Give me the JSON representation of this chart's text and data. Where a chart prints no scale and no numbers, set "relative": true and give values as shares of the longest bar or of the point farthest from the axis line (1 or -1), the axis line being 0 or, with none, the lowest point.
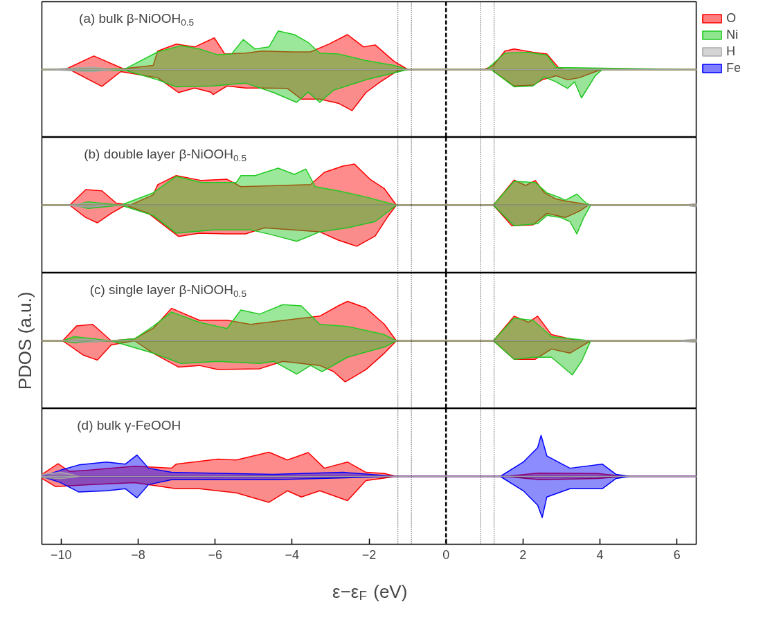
{
  "chart_data": [
    {
      "type": "area",
      "relative": true,
      "title": "(a) bulk β-NiOOH$_{0.5}$",
      "xlim": [
        -10.5,
        6.5
      ],
      "tick_labels": false,
      "legend": "right",
      "grid": false,
      "ref_lines": [
        {
          "axis": "x",
          "value": -1.25,
          "line_style": "dotted",
          "color": "#000000"
        },
        {
          "axis": "x",
          "value": -0.9,
          "line_style": "dotted",
          "color": "#000000"
        },
        {
          "axis": "x",
          "value": 0,
          "line_style": "dashed",
          "color": "#000000"
        },
        {
          "axis": "x",
          "value": 0.9,
          "line_style": "dotted",
          "color": "#000000"
        },
        {
          "axis": "x",
          "value": 1.25,
          "line_style": "dotted",
          "color": "#000000"
        }
      ],
      "series": [
        {
          "name": "O",
          "color": "#ff0000",
          "x": [
            -10.5,
            -9.9,
            -9.15,
            -8.39,
            -7.61,
            -7.49,
            -7.01,
            -6.53,
            -6.02,
            -5.75,
            -5.21,
            -4.78,
            -4.0,
            -3.52,
            -3.04,
            -2.56,
            -2.14,
            -1.84,
            -1.35,
            -0.99,
            0.99,
            1.23,
            1.53,
            1.77,
            2.26,
            2.62,
            2.92,
            3.1,
            6.5
          ],
          "values": [
            0,
            0,
            0.33,
            0.02,
            0.1,
            0.45,
            0.62,
            0.55,
            0.77,
            0.38,
            0.4,
            0.45,
            0.43,
            0.43,
            0.62,
            0.85,
            0.55,
            0.6,
            0.2,
            0,
            0,
            0.1,
            0.45,
            0.5,
            0.42,
            0.38,
            0.05,
            0,
            0
          ]
        },
        {
          "name": "Ni",
          "color": "#22cc22",
          "x": [
            -10.5,
            -8.33,
            -7.49,
            -6.89,
            -6.41,
            -5.93,
            -5.57,
            -5.27,
            -4.96,
            -4.6,
            -4.36,
            -3.94,
            -3.58,
            -3.28,
            -2.8,
            -2.08,
            -1.35,
            -0.99,
            1.05,
            1.53,
            2.14,
            2.62,
            2.86,
            6.5
          ],
          "values": [
            0,
            0.02,
            0.43,
            0.58,
            0.5,
            0.36,
            0.38,
            0.73,
            0.5,
            0.55,
            0.94,
            0.85,
            0.66,
            0.4,
            0.38,
            0.22,
            0.1,
            0,
            0,
            0.4,
            0.42,
            0.35,
            0.05,
            0
          ]
        },
        {
          "name": "H",
          "color": "#aaaaaa",
          "x": [
            -10.5,
            -10.2,
            -9.2,
            -8.6,
            6.5
          ],
          "values": [
            0,
            0.01,
            0.06,
            0,
            0
          ]
        },
        {
          "color": "#f40000",
          "x": [
            -10.5,
            -9.78,
            -8.94,
            -8.45,
            -7.49,
            -6.95,
            -6.53,
            -6.11,
            -6.05,
            -5.69,
            -5.21,
            -4.78,
            -4.12,
            -3.76,
            -3.28,
            -2.8,
            -2.44,
            -2.08,
            -1.72,
            -1.29,
            -0.99,
            1.17,
            1.77,
            2.26,
            2.5,
            2.86,
            3.16,
            3.46,
            3.88,
            4.06,
            6.5
          ],
          "values": [
            0,
            0,
            -0.41,
            -0.05,
            -0.2,
            -0.56,
            -0.45,
            -0.55,
            -0.61,
            -0.4,
            -0.45,
            -0.45,
            -0.46,
            -0.72,
            -0.72,
            -0.82,
            -1.0,
            -0.56,
            -0.31,
            -0.05,
            0,
            0,
            -0.4,
            -0.38,
            -0.25,
            -0.15,
            -0.25,
            -0.2,
            -0.05,
            0,
            0
          ]
        },
        {
          "color": "#20c420",
          "x": [
            -10.5,
            -8.33,
            -7.49,
            -7.01,
            -6.05,
            -5.21,
            -4.48,
            -3.88,
            -3.58,
            -3.28,
            -2.92,
            -2.08,
            -1.35,
            -0.99,
            1.17,
            1.77,
            2.26,
            2.56,
            2.86,
            3.16,
            3.34,
            3.52,
            3.88,
            4.06,
            6.5
          ],
          "values": [
            0,
            -0.02,
            -0.25,
            -0.42,
            -0.4,
            -0.33,
            -0.56,
            -0.8,
            -0.55,
            -0.8,
            -0.5,
            -0.25,
            -0.08,
            0,
            0,
            -0.42,
            -0.4,
            -0.18,
            -0.3,
            -0.46,
            -0.3,
            -0.69,
            -0.15,
            0,
            0
          ]
        },
        {
          "color": "#a2a2a2",
          "x": [
            -10.5,
            -10.2,
            -9.2,
            -8.6,
            6.5
          ],
          "values": [
            0,
            -0.01,
            -0.05,
            0,
            0
          ]
        }
      ]
    },
    {
      "type": "area",
      "relative": true,
      "title": "(b) double layer β-NiOOH$_{0.5}$",
      "xlim": [
        -10.5,
        6.5
      ],
      "tick_labels": false,
      "grid": false,
      "ref_lines": [
        {
          "axis": "x",
          "value": -1.25,
          "line_style": "dotted",
          "color": "#000000"
        },
        {
          "axis": "x",
          "value": -0.9,
          "line_style": "dotted",
          "color": "#000000"
        },
        {
          "axis": "x",
          "value": 0,
          "line_style": "dashed",
          "color": "#000000"
        },
        {
          "axis": "x",
          "value": 0.9,
          "line_style": "dotted",
          "color": "#000000"
        },
        {
          "axis": "x",
          "value": 1.25,
          "line_style": "dotted",
          "color": "#000000"
        }
      ],
      "series": [
        {
          "color": "#ff0000",
          "x": [
            -10.5,
            -9.78,
            -9.36,
            -8.94,
            -8.57,
            -8.21,
            -7.61,
            -7.49,
            -7.01,
            -6.35,
            -5.69,
            -5.33,
            -3.52,
            -3.16,
            -2.68,
            -2.38,
            -1.96,
            -1.6,
            -1.29,
            1.23,
            1.77,
            2.07,
            2.32,
            2.56,
            2.86,
            3.1,
            3.46,
            3.7,
            6.5
          ],
          "values": [
            0,
            0,
            0.38,
            0.35,
            0.05,
            0,
            0.25,
            0.5,
            0.72,
            0.6,
            0.63,
            0.45,
            0.5,
            0.8,
            0.95,
            1.0,
            0.62,
            0.4,
            0,
            0,
            0.61,
            0.48,
            0.6,
            0.3,
            0.15,
            0.1,
            0.05,
            0,
            0
          ]
        },
        {
          "color": "#22cc22",
          "x": [
            -10.5,
            -9.66,
            -9.3,
            -8.45,
            -7.61,
            -7.01,
            -6.35,
            -5.45,
            -5.33,
            -4.96,
            -4.36,
            -3.94,
            -3.64,
            -3.4,
            -2.8,
            -2.08,
            -1.29,
            1.23,
            1.77,
            2.32,
            2.62,
            2.92,
            3.1,
            3.4,
            3.64,
            3.76,
            6.5
          ],
          "values": [
            0,
            0,
            0.08,
            0,
            0.3,
            0.7,
            0.55,
            0.55,
            0.72,
            0.72,
            0.9,
            0.75,
            0.88,
            0.45,
            0.35,
            0.2,
            0,
            0,
            0.58,
            0.55,
            0.3,
            0.2,
            0.12,
            0.27,
            0.05,
            0,
            0
          ]
        },
        {
          "color": "#aaaaaa",
          "x": [
            -10.5,
            -9.9,
            -9.3,
            -8.7,
            6.2,
            6.5
          ],
          "values": [
            0,
            0,
            0.05,
            0,
            0,
            0.04
          ]
        },
        {
          "color": "#f40000",
          "x": [
            -10.5,
            -9.78,
            -9.36,
            -9.06,
            -8.7,
            -8.33,
            -7.73,
            -6.95,
            -6.41,
            -5.69,
            -5.21,
            -4.72,
            -3.28,
            -2.8,
            -2.32,
            -1.84,
            -1.53,
            -1.29,
            1.23,
            1.71,
            2.26,
            2.62,
            2.86,
            3.1,
            3.46,
            3.7,
            6.5
          ],
          "values": [
            0,
            0,
            -0.3,
            -0.43,
            -0.2,
            0,
            -0.2,
            -0.76,
            -0.68,
            -0.7,
            -0.7,
            -0.55,
            -0.65,
            -0.85,
            -1.0,
            -0.75,
            -0.3,
            0,
            0,
            -0.5,
            -0.48,
            -0.2,
            -0.25,
            -0.3,
            -0.15,
            0,
            0
          ]
        },
        {
          "color": "#20c420",
          "x": [
            -10.5,
            -9.66,
            -9.3,
            -8.45,
            -7.61,
            -7.01,
            -6.05,
            -5.08,
            -4.48,
            -3.88,
            -3.28,
            -2.56,
            -1.84,
            -1.29,
            1.23,
            1.77,
            2.38,
            2.62,
            2.98,
            3.22,
            3.4,
            3.58,
            3.76,
            6.5
          ],
          "values": [
            0,
            0,
            -0.08,
            0,
            -0.25,
            -0.68,
            -0.6,
            -0.6,
            -0.73,
            -0.88,
            -0.65,
            -0.55,
            -0.4,
            0,
            0,
            -0.5,
            -0.45,
            -0.25,
            -0.3,
            -0.4,
            -0.7,
            -0.3,
            0,
            0
          ]
        },
        {
          "color": "#a2a2a2",
          "x": [
            -10.5,
            -9.9,
            -9.3,
            -8.7,
            6.2,
            6.5
          ],
          "values": [
            0,
            0,
            -0.05,
            0,
            0,
            -0.04
          ]
        }
      ]
    },
    {
      "type": "area",
      "relative": true,
      "title": "(c) single layer β-NiOOH$_{0.5}$",
      "ylabel": "PDOS (a.u.)",
      "xlim": [
        -10.5,
        6.5
      ],
      "tick_labels": false,
      "grid": false,
      "ref_lines": [
        {
          "axis": "x",
          "value": -1.25,
          "line_style": "dotted",
          "color": "#000000"
        },
        {
          "axis": "x",
          "value": -0.9,
          "line_style": "dotted",
          "color": "#000000"
        },
        {
          "axis": "x",
          "value": 0,
          "line_style": "dashed",
          "color": "#000000"
        },
        {
          "axis": "x",
          "value": 0.9,
          "line_style": "dotted",
          "color": "#000000"
        },
        {
          "axis": "x",
          "value": 1.25,
          "line_style": "dotted",
          "color": "#000000"
        }
      ],
      "series": [
        {
          "color": "#ff0000",
          "x": [
            -10.5,
            -9.96,
            -9.6,
            -9.18,
            -8.7,
            -8.09,
            -7.61,
            -7.13,
            -6.41,
            -5.69,
            -5.08,
            -3.28,
            -2.8,
            -2.56,
            -2.08,
            -1.6,
            -1.29,
            1.23,
            1.77,
            2.14,
            2.38,
            2.74,
            3.34,
            3.76,
            6.5
          ],
          "values": [
            0,
            0,
            0.36,
            0.4,
            0,
            0.05,
            0.3,
            0.79,
            0.5,
            0.5,
            0.4,
            0.6,
            0.85,
            0.96,
            0.8,
            0.4,
            0,
            0,
            0.6,
            0.45,
            0.6,
            0.15,
            0.02,
            0,
            0
          ]
        },
        {
          "color": "#22cc22",
          "x": [
            -10.5,
            -9.96,
            -9.66,
            -8.7,
            -8.09,
            -7.61,
            -7.13,
            -6.41,
            -5.69,
            -5.33,
            -4.84,
            -4.24,
            -3.76,
            -3.28,
            -2.56,
            -1.6,
            -1.29,
            1.23,
            1.77,
            2.26,
            2.74,
            3.76,
            6.5
          ],
          "values": [
            0,
            0,
            0.1,
            0,
            0.05,
            0.35,
            0.7,
            0.45,
            0.3,
            0.75,
            0.65,
            0.88,
            0.85,
            0.4,
            0.35,
            0.15,
            0,
            0,
            0.55,
            0.5,
            0.1,
            0,
            0
          ]
        },
        {
          "color": "#aaaaaa",
          "x": [
            -10.5,
            -9.9,
            -9.4,
            -8.8,
            6.0,
            6.5
          ],
          "values": [
            0,
            0,
            0.04,
            0,
            0,
            0.04
          ]
        },
        {
          "color": "#f40000",
          "x": [
            -10.5,
            -9.96,
            -9.42,
            -9.06,
            -8.7,
            -8.09,
            -7.61,
            -6.95,
            -6.41,
            -5.93,
            -4.84,
            -4.24,
            -3.28,
            -2.92,
            -2.62,
            -2.08,
            -1.6,
            -1.29,
            1.23,
            1.77,
            2.32,
            2.74,
            3.22,
            3.58,
            3.76,
            6.5
          ],
          "values": [
            0,
            0,
            -0.35,
            -0.47,
            -0.1,
            0,
            -0.3,
            -0.64,
            -0.6,
            -0.7,
            -0.68,
            -0.5,
            -0.6,
            -0.75,
            -1.0,
            -0.7,
            -0.3,
            0,
            0,
            -0.45,
            -0.45,
            -0.2,
            -0.3,
            -0.1,
            0,
            0
          ]
        },
        {
          "color": "#20c420",
          "x": [
            -10.5,
            -9.96,
            -9.66,
            -8.7,
            -7.61,
            -6.89,
            -5.93,
            -4.84,
            -4.48,
            -3.88,
            -3.52,
            -3.22,
            -2.56,
            -1.6,
            -1.29,
            1.23,
            1.77,
            2.26,
            2.74,
            3.28,
            3.52,
            3.76,
            6.5
          ],
          "values": [
            0,
            0,
            -0.05,
            0,
            -0.3,
            -0.55,
            -0.5,
            -0.55,
            -0.5,
            -0.81,
            -0.6,
            -0.75,
            -0.4,
            -0.15,
            0,
            0,
            -0.45,
            -0.4,
            -0.4,
            -0.83,
            -0.5,
            0,
            0
          ]
        },
        {
          "color": "#a2a2a2",
          "x": [
            -10.5,
            -9.9,
            -9.4,
            -8.8,
            6.0,
            6.5
          ],
          "values": [
            0,
            0,
            -0.04,
            0,
            0,
            -0.04
          ]
        }
      ]
    },
    {
      "type": "area",
      "relative": true,
      "title": "(d) bulk  γ-FeOOH",
      "xlabel": "ε−ε$_{F}$ (eV)",
      "xlim": [
        -10.5,
        6.5
      ],
      "xticks": [
        -10,
        -8,
        -6,
        -4,
        -2,
        0,
        2,
        4,
        6
      ],
      "tick_labels": "x",
      "grid": false,
      "ref_lines": [
        {
          "axis": "x",
          "value": -1.25,
          "line_style": "dotted",
          "color": "#000000"
        },
        {
          "axis": "x",
          "value": -0.9,
          "line_style": "dotted",
          "color": "#000000"
        },
        {
          "axis": "x",
          "value": 0,
          "line_style": "dashed",
          "color": "#000000"
        },
        {
          "axis": "x",
          "value": 0.9,
          "line_style": "dotted",
          "color": "#000000"
        },
        {
          "axis": "x",
          "value": 1.25,
          "line_style": "dotted",
          "color": "#000000"
        }
      ],
      "series": [
        {
          "color": "#ff0000",
          "x": [
            -10.5,
            -10.08,
            -9.78,
            -9.3,
            -8.09,
            -7.13,
            -7.01,
            -5.93,
            -5.45,
            -4.6,
            -4.12,
            -3.58,
            -3.16,
            -2.56,
            -2.08,
            -1.6,
            -1.29,
            1.53,
            2.38,
            3.94,
            4.66,
            6.5
          ],
          "values": [
            0.05,
            0.31,
            0.12,
            0.15,
            0.25,
            0.2,
            0.3,
            0.42,
            0.4,
            0.59,
            0.4,
            0.58,
            0.2,
            0.35,
            0.1,
            0.07,
            0,
            0,
            0.08,
            0.07,
            0,
            0
          ]
        },
        {
          "name": "Fe",
          "color": "#0000ff",
          "x": [
            -10.5,
            -10.02,
            -9.54,
            -8.82,
            -8.33,
            -8.03,
            -7.73,
            -7.13,
            -5.69,
            -4.48,
            -2.68,
            -1.29,
            1.41,
            2.01,
            2.38,
            2.47,
            2.62,
            3.22,
            4.06,
            4.42,
            4.78,
            6.5
          ],
          "values": [
            0,
            0.15,
            0.28,
            0.35,
            0.3,
            0.52,
            0.2,
            0.1,
            0.07,
            0.05,
            0.1,
            0,
            0,
            0.35,
            0.7,
            1.0,
            0.5,
            0.2,
            0.3,
            0.05,
            0,
            0
          ]
        },
        {
          "color": "#aaaaaa",
          "x": [
            -10.5,
            -10.0,
            -9.5,
            6.5
          ],
          "values": [
            0.05,
            0.1,
            0,
            0
          ]
        },
        {
          "color": "#f40000",
          "x": [
            -10.5,
            -10.14,
            -9.3,
            -8.09,
            -7.01,
            -6.41,
            -5.45,
            -4.6,
            -4.12,
            -3.76,
            -3.28,
            -2.56,
            -2.08,
            -1.29,
            1.53,
            2.44,
            3.94,
            4.66,
            6.5
          ],
          "values": [
            -0.05,
            -0.25,
            -0.2,
            -0.15,
            -0.3,
            -0.3,
            -0.4,
            -0.63,
            -0.35,
            -0.5,
            -0.35,
            -0.59,
            -0.1,
            0,
            0,
            -0.08,
            -0.05,
            0,
            0
          ]
        },
        {
          "color": "#0000f4",
          "x": [
            -10.5,
            -10.02,
            -9.54,
            -8.82,
            -8.33,
            -8.03,
            -7.73,
            -7.13,
            -4.48,
            -3.28,
            -1.29,
            1.41,
            2.01,
            2.38,
            2.5,
            2.62,
            3.22,
            4.06,
            4.42,
            4.78,
            6.5
          ],
          "values": [
            0,
            -0.15,
            -0.38,
            -0.35,
            -0.3,
            -0.52,
            -0.2,
            -0.08,
            -0.08,
            -0.05,
            0,
            0,
            -0.35,
            -0.7,
            -1.0,
            -0.5,
            -0.3,
            -0.3,
            -0.05,
            0,
            0
          ]
        },
        {
          "color": "#a2a2a2",
          "x": [
            -10.5,
            -10.0,
            -9.5,
            6.5
          ],
          "values": [
            -0.03,
            -0.05,
            0,
            0
          ]
        }
      ]
    }
  ]
}
